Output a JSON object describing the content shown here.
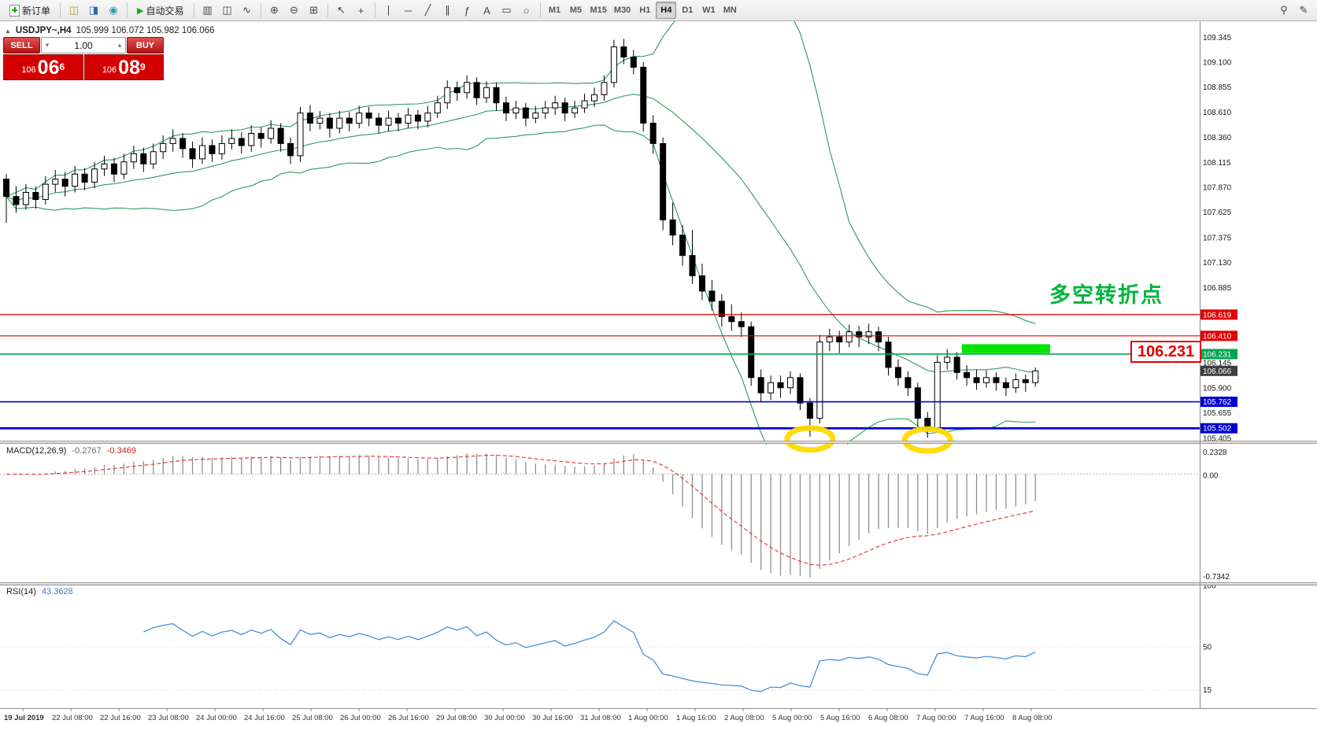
{
  "toolbar": {
    "new_order_label": "新订单",
    "autotrade_label": "自动交易",
    "play_icon": "▶",
    "groups": {
      "quick": [
        {
          "name": "chart-window-icon",
          "glyph": "◫",
          "color": "#b8912f"
        },
        {
          "name": "profile-icon",
          "glyph": "◨",
          "color": "#2f66b8"
        },
        {
          "name": "news-icon",
          "glyph": "◉",
          "color": "#2f9ab8"
        }
      ],
      "chart_types": [
        {
          "name": "bar-chart-icon",
          "glyph": "▥"
        },
        {
          "name": "candlestick-icon",
          "glyph": "◫"
        },
        {
          "name": "line-chart-icon",
          "glyph": "∿"
        }
      ],
      "zoom": [
        {
          "name": "zoom-in-icon",
          "glyph": "⊕"
        },
        {
          "name": "zoom-out-icon",
          "glyph": "⊖"
        },
        {
          "name": "tile-windows-icon",
          "glyph": "⊞"
        }
      ],
      "pointer": [
        {
          "name": "cursor-icon",
          "glyph": "↖"
        },
        {
          "name": "crosshair-icon",
          "glyph": "+"
        }
      ],
      "draw": [
        {
          "name": "vertical-line-tool",
          "glyph": "∣"
        },
        {
          "name": "horizontal-line-tool",
          "glyph": "─"
        },
        {
          "name": "trendline-tool",
          "glyph": "╱"
        },
        {
          "name": "channel-tool",
          "glyph": "∥"
        },
        {
          "name": "fibonacci-tool",
          "glyph": "ƒ"
        },
        {
          "name": "text-tool",
          "glyph": "A"
        },
        {
          "name": "label-tool",
          "glyph": "▭"
        },
        {
          "name": "shapes-tool",
          "glyph": "○"
        }
      ],
      "right": [
        {
          "name": "search-icon",
          "glyph": "⚲"
        },
        {
          "name": "edit-icon",
          "glyph": "✎"
        }
      ]
    },
    "timeframes": [
      {
        "label": "M1"
      },
      {
        "label": "M5"
      },
      {
        "label": "M15"
      },
      {
        "label": "M30"
      },
      {
        "label": "H1"
      },
      {
        "label": "H4",
        "active": true
      },
      {
        "label": "D1"
      },
      {
        "label": "W1"
      },
      {
        "label": "MN"
      }
    ]
  },
  "chart": {
    "collapse_icon": "▲",
    "header": {
      "symbol": "USDJPY~,H4",
      "ohlc": "105.999 106.072 105.982 106.066"
    },
    "annotations": {
      "turning_point": "多空转折点",
      "price_callout": "106.231"
    }
  },
  "trade": {
    "sell_label": "SELL",
    "buy_label": "BUY",
    "volume": "1.00",
    "caret_down": "▾",
    "caret_up": "▴",
    "bid": {
      "prefix": "106",
      "main": "06",
      "sup": "6"
    },
    "ask": {
      "prefix": "106",
      "main": "08",
      "sup": "9"
    }
  },
  "chart_data": {
    "type": "candlestick",
    "title": "USDJPY~,H4",
    "ohlc_current": [
      105.999,
      106.072,
      105.982,
      106.066
    ],
    "ylim": [
      105.38,
      109.44
    ],
    "candles": [
      [
        107.95,
        108.0,
        107.52,
        107.78
      ],
      [
        107.78,
        107.88,
        107.62,
        107.7
      ],
      [
        107.7,
        107.9,
        107.65,
        107.82
      ],
      [
        107.82,
        107.88,
        107.66,
        107.75
      ],
      [
        107.75,
        107.98,
        107.7,
        107.9
      ],
      [
        107.9,
        108.04,
        107.82,
        107.95
      ],
      [
        107.95,
        108.02,
        107.78,
        107.88
      ],
      [
        107.88,
        108.08,
        107.82,
        108.0
      ],
      [
        108.0,
        108.06,
        107.84,
        107.92
      ],
      [
        107.92,
        108.12,
        107.86,
        108.05
      ],
      [
        108.05,
        108.18,
        107.98,
        108.1
      ],
      [
        108.1,
        108.16,
        107.92,
        108.0
      ],
      [
        108.0,
        108.2,
        107.95,
        108.12
      ],
      [
        108.12,
        108.28,
        108.05,
        108.2
      ],
      [
        108.2,
        108.26,
        108.02,
        108.1
      ],
      [
        108.1,
        108.3,
        108.05,
        108.22
      ],
      [
        108.22,
        108.38,
        108.15,
        108.3
      ],
      [
        108.3,
        108.44,
        108.22,
        108.35
      ],
      [
        108.35,
        108.4,
        108.16,
        108.25
      ],
      [
        108.25,
        108.32,
        108.06,
        108.15
      ],
      [
        108.15,
        108.36,
        108.1,
        108.28
      ],
      [
        108.28,
        108.34,
        108.12,
        108.2
      ],
      [
        108.2,
        108.38,
        108.14,
        108.3
      ],
      [
        108.3,
        108.44,
        108.24,
        108.35
      ],
      [
        108.35,
        108.41,
        108.2,
        108.28
      ],
      [
        108.28,
        108.48,
        108.22,
        108.4
      ],
      [
        108.4,
        108.46,
        108.26,
        108.35
      ],
      [
        108.35,
        108.53,
        108.3,
        108.45
      ],
      [
        108.45,
        108.5,
        108.22,
        108.3
      ],
      [
        108.3,
        108.36,
        108.1,
        108.18
      ],
      [
        108.18,
        108.66,
        108.12,
        108.6
      ],
      [
        108.6,
        108.68,
        108.42,
        108.5
      ],
      [
        108.5,
        108.62,
        108.44,
        108.55
      ],
      [
        108.55,
        108.6,
        108.36,
        108.45
      ],
      [
        108.45,
        108.62,
        108.4,
        108.55
      ],
      [
        108.55,
        108.61,
        108.42,
        108.5
      ],
      [
        108.5,
        108.67,
        108.45,
        108.6
      ],
      [
        108.6,
        108.66,
        108.47,
        108.55
      ],
      [
        108.55,
        108.6,
        108.4,
        108.48
      ],
      [
        108.48,
        108.62,
        108.42,
        108.55
      ],
      [
        108.55,
        108.6,
        108.42,
        108.5
      ],
      [
        108.5,
        108.65,
        108.45,
        108.58
      ],
      [
        108.58,
        108.63,
        108.44,
        108.52
      ],
      [
        108.52,
        108.67,
        108.46,
        108.6
      ],
      [
        108.6,
        108.77,
        108.55,
        108.7
      ],
      [
        108.7,
        108.92,
        108.64,
        108.85
      ],
      [
        108.85,
        108.91,
        108.72,
        108.8
      ],
      [
        108.8,
        108.97,
        108.74,
        108.9
      ],
      [
        108.9,
        108.95,
        108.68,
        108.75
      ],
      [
        108.75,
        108.91,
        108.7,
        108.85
      ],
      [
        108.85,
        108.9,
        108.62,
        108.7
      ],
      [
        108.7,
        108.76,
        108.52,
        108.6
      ],
      [
        108.6,
        108.72,
        108.54,
        108.65
      ],
      [
        108.65,
        108.7,
        108.47,
        108.55
      ],
      [
        108.55,
        108.67,
        108.5,
        108.6
      ],
      [
        108.6,
        108.72,
        108.54,
        108.65
      ],
      [
        108.65,
        108.77,
        108.58,
        108.7
      ],
      [
        108.7,
        108.75,
        108.52,
        108.6
      ],
      [
        108.6,
        108.72,
        108.55,
        108.65
      ],
      [
        108.65,
        108.79,
        108.6,
        108.72
      ],
      [
        108.72,
        108.85,
        108.66,
        108.78
      ],
      [
        108.78,
        108.97,
        108.72,
        108.9
      ],
      [
        108.9,
        109.32,
        108.85,
        109.25
      ],
      [
        109.25,
        109.33,
        109.08,
        109.15
      ],
      [
        109.15,
        109.22,
        108.98,
        109.05
      ],
      [
        109.05,
        109.1,
        108.42,
        108.5
      ],
      [
        108.5,
        108.58,
        108.2,
        108.3
      ],
      [
        108.3,
        108.36,
        107.45,
        107.55
      ],
      [
        107.55,
        107.72,
        107.3,
        107.4
      ],
      [
        107.4,
        107.5,
        107.1,
        107.2
      ],
      [
        107.2,
        107.45,
        106.92,
        107.0
      ],
      [
        107.0,
        107.12,
        106.76,
        106.85
      ],
      [
        106.85,
        106.96,
        106.66,
        106.75
      ],
      [
        106.75,
        106.82,
        106.5,
        106.6
      ],
      [
        106.6,
        106.72,
        106.46,
        106.55
      ],
      [
        106.55,
        106.64,
        106.4,
        106.5
      ],
      [
        106.5,
        106.55,
        105.92,
        106.0
      ],
      [
        106.0,
        106.08,
        105.76,
        105.85
      ],
      [
        105.85,
        106.02,
        105.78,
        105.95
      ],
      [
        105.95,
        106.02,
        105.8,
        105.9
      ],
      [
        105.9,
        106.06,
        105.84,
        106.0
      ],
      [
        106.0,
        106.04,
        105.68,
        105.75
      ],
      [
        105.75,
        105.8,
        105.42,
        105.6
      ],
      [
        105.6,
        106.42,
        105.55,
        106.35
      ],
      [
        106.35,
        106.48,
        106.26,
        106.4
      ],
      [
        106.4,
        106.46,
        106.24,
        106.35
      ],
      [
        106.35,
        106.52,
        106.3,
        106.45
      ],
      [
        106.45,
        106.51,
        106.3,
        106.4
      ],
      [
        106.4,
        106.53,
        106.33,
        106.45
      ],
      [
        106.45,
        106.5,
        106.26,
        106.35
      ],
      [
        106.35,
        106.4,
        106.02,
        106.1
      ],
      [
        106.1,
        106.18,
        105.92,
        106.0
      ],
      [
        106.0,
        106.06,
        105.82,
        105.9
      ],
      [
        105.9,
        105.95,
        105.52,
        105.6
      ],
      [
        105.6,
        105.66,
        105.41,
        105.5
      ],
      [
        105.5,
        106.22,
        105.46,
        106.15
      ],
      [
        106.15,
        106.28,
        106.08,
        106.2
      ],
      [
        106.2,
        106.25,
        105.98,
        106.05
      ],
      [
        106.05,
        106.12,
        105.92,
        106.0
      ],
      [
        106.0,
        106.08,
        105.88,
        105.95
      ],
      [
        105.95,
        106.07,
        105.9,
        106.0
      ],
      [
        106.0,
        106.05,
        105.87,
        105.95
      ],
      [
        105.95,
        106.0,
        105.82,
        105.9
      ],
      [
        105.9,
        106.04,
        105.85,
        105.98
      ],
      [
        105.98,
        106.03,
        105.86,
        105.95
      ],
      [
        105.95,
        106.1,
        105.91,
        106.066
      ]
    ],
    "bollinger": {
      "period": 20,
      "deviation": 2,
      "color": "#2e9a5e"
    },
    "macd": {
      "name": "MACD(12,26,9)",
      "fast": 12,
      "slow": 26,
      "signal": 9,
      "value_main": "-0.2767",
      "value_signal": "-0.3469",
      "hist_color": "#8f8f8f",
      "signal_color": "#e03030"
    },
    "rsi": {
      "name": "RSI(14)",
      "period": 14,
      "value": "43.3628",
      "color": "#4a8fd4"
    },
    "hlines": [
      {
        "price": 106.619,
        "label": "106.619",
        "color": "#e10000",
        "width": 1.2
      },
      {
        "price": 106.41,
        "label": "106.410",
        "color": "#e10000",
        "width": 1.2
      },
      {
        "price": 106.231,
        "label": "106.231",
        "color": "#00a651",
        "width": 1.6
      },
      {
        "price": 105.762,
        "label": "105.762",
        "color": "#0000cd",
        "width": 1.6
      },
      {
        "price": 105.502,
        "label": "105.502",
        "color": "#0000cd",
        "width": 2.8
      }
    ],
    "current_price": {
      "price": 106.066,
      "label": "106.066",
      "bg": "#3f3f3f"
    },
    "highlight_zone": {
      "price_top": 106.328,
      "price_bottom": 106.24,
      "from_index": 97.5,
      "to_index": 106.5,
      "color": "#00e400"
    },
    "circles": [
      {
        "index": 82,
        "low": 105.42
      },
      {
        "index": 94,
        "low": 105.41
      }
    ],
    "circle_color": "#ffd900",
    "price_ticks": [
      "109.345",
      "109.100",
      "108.855",
      "108.610",
      "108.360",
      "108.115",
      "107.870",
      "107.625",
      "107.375",
      "107.130",
      "106.885",
      "106.145",
      "105.900",
      "105.655",
      "105.405"
    ],
    "macd_ticks": [
      "0.2328",
      "0.00",
      "-0.7342"
    ],
    "rsi_ticks": [
      "100",
      "50",
      "15"
    ],
    "time_labels": [
      "19 Jul 2019",
      "22 Jul 08:00",
      "22 Jul 16:00",
      "23 Jul 08:00",
      "24 Jul 00:00",
      "24 Jul 16:00",
      "25 Jul 08:00",
      "26 Jul 00:00",
      "26 Jul 16:00",
      "29 Jul 08:00",
      "30 Jul 00:00",
      "30 Jul 16:00",
      "31 Jul 08:00",
      "1 Aug 00:00",
      "1 Aug 16:00",
      "2 Aug 08:00",
      "5 Aug 00:00",
      "5 Aug 16:00",
      "6 Aug 08:00",
      "7 Aug 00:00",
      "7 Aug 16:00",
      "8 Aug 08:00"
    ]
  }
}
